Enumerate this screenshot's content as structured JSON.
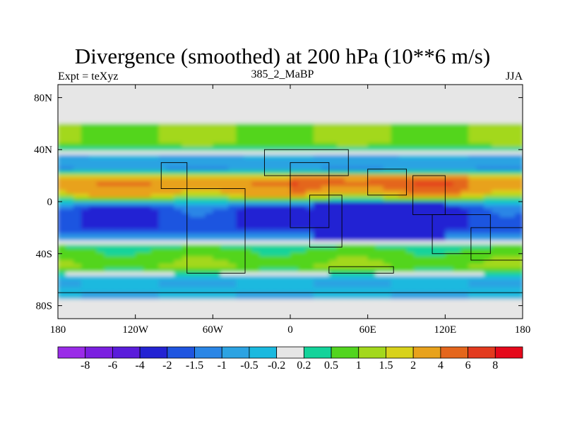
{
  "title": "Divergence (smoothed) at 200 hPa (10**6 m/s)",
  "left_string": "Expt = teXyz",
  "center_string": "385_2_MaBP",
  "right_string": "JJA",
  "map": {
    "lon_range": [
      -180,
      180
    ],
    "lat_range": [
      -90,
      90
    ],
    "x_tick_labels": [
      "180",
      "120W",
      "60W",
      "0",
      "60E",
      "120E",
      "180"
    ],
    "y_tick_labels": [
      "80N",
      "40N",
      "0",
      "40S",
      "80S"
    ]
  },
  "colorbar": {
    "labels": [
      "-8",
      "-6",
      "-4",
      "-2",
      "-1.5",
      "-1",
      "-0.5",
      "-0.2",
      "0.2",
      "0.5",
      "1",
      "1.5",
      "2",
      "4",
      "6",
      "8"
    ],
    "colors": [
      "#9a2be8",
      "#7b1fe0",
      "#5a1cdb",
      "#2323d3",
      "#1f55e0",
      "#2a86e6",
      "#2ca3e2",
      "#1ab9df",
      "#e6e6e6",
      "#13d39a",
      "#52d51f",
      "#a3d81c",
      "#d8d21b",
      "#e8a21c",
      "#e4661c",
      "#e33a1e",
      "#e5091b"
    ]
  },
  "chart_data": {
    "type": "heatmap",
    "title": "Divergence (smoothed) at 200 hPa (10**6 m/s)",
    "variable": "divergence (smoothed), 200 hPa, JJA",
    "units": "10**6 m/s",
    "zonal_mean_profile": [
      {
        "lat": 60,
        "value": 1
      },
      {
        "lat": 45,
        "value": 1
      },
      {
        "lat": 35,
        "value": -0.5
      },
      {
        "lat": 25,
        "value": -1
      },
      {
        "lat": 15,
        "value": 4
      },
      {
        "lat": 5,
        "value": 2
      },
      {
        "lat": -5,
        "value": -2
      },
      {
        "lat": -20,
        "value": -2
      },
      {
        "lat": -35,
        "value": 0.5
      },
      {
        "lat": -50,
        "value": 1
      },
      {
        "lat": -60,
        "value": -0.5
      },
      {
        "lat": -75,
        "value": -0.5
      }
    ],
    "xlim": [
      -180,
      180
    ],
    "ylim": [
      -90,
      90
    ]
  }
}
